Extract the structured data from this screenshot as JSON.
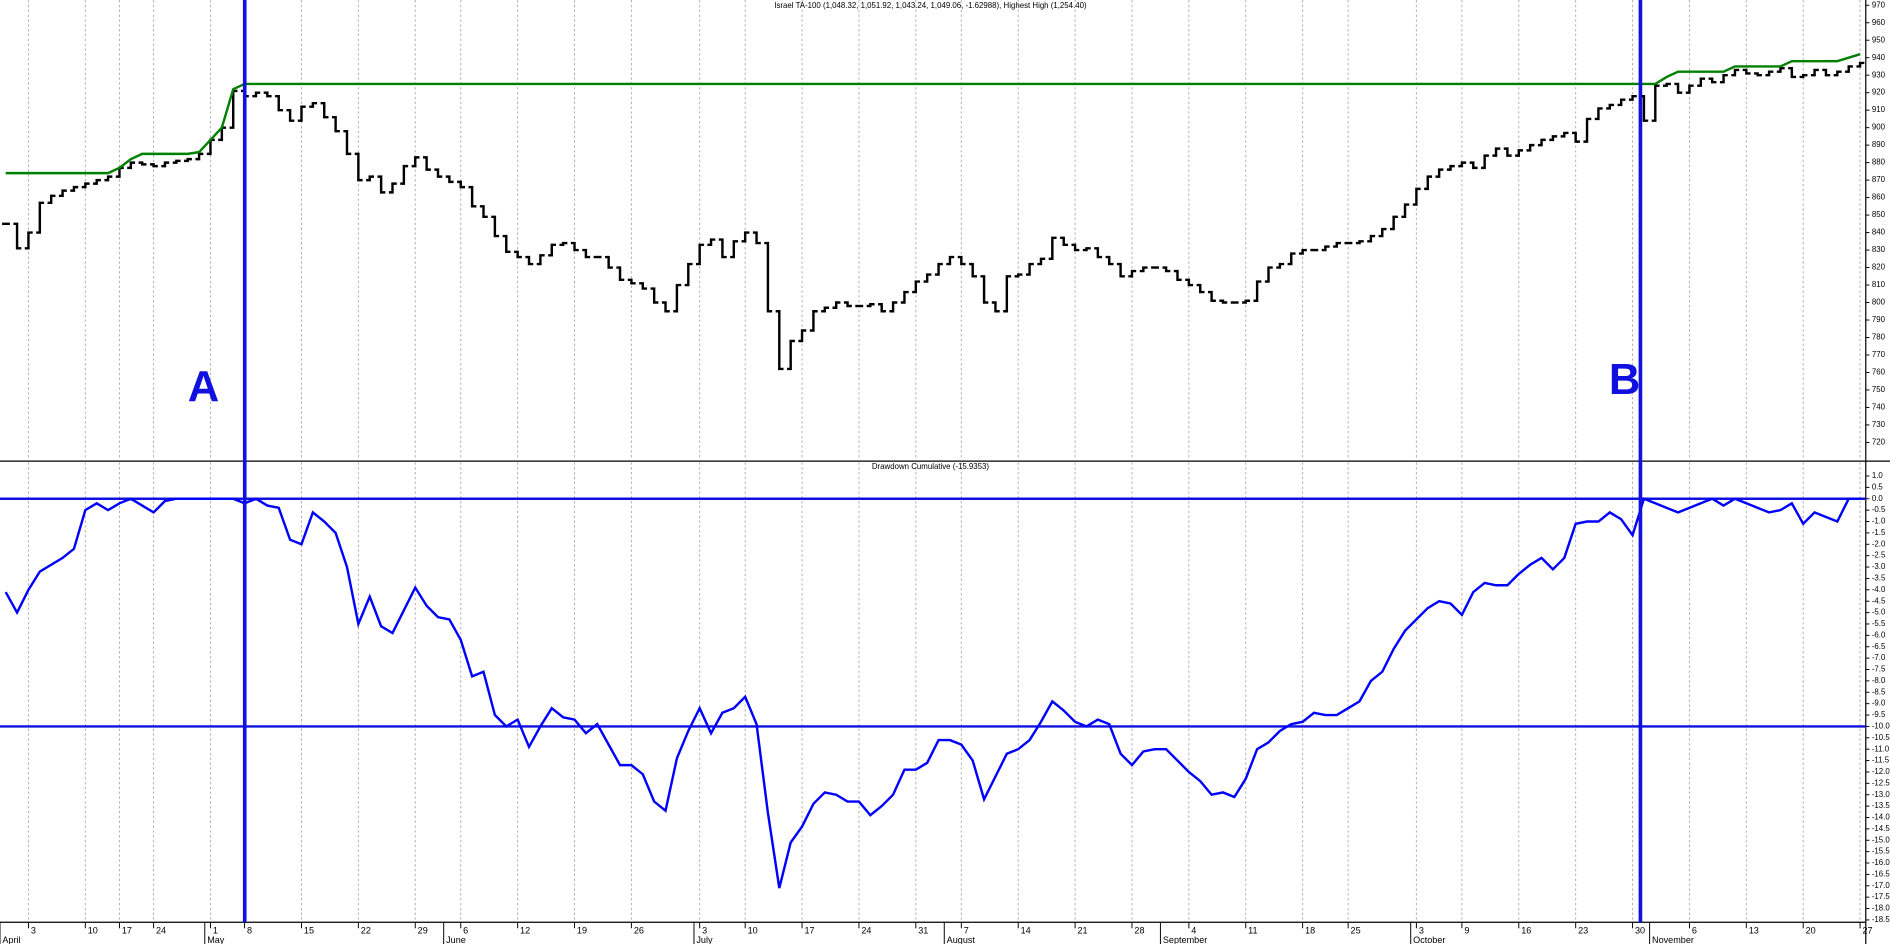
{
  "chart_data": [
    {
      "type": "step",
      "title": "Israel TA-100 (1,048.32, 1,051.92, 1,043.24, 1,049.06, -1.62988), Highest High (1,254.40)",
      "annotations": [
        "A",
        "B"
      ],
      "series": [
        {
          "color": "#000000",
          "style": "bars",
          "values": [
            845,
            831,
            840,
            857,
            861,
            864,
            866,
            868,
            870,
            872,
            877,
            880,
            879,
            878,
            880,
            881,
            882,
            885,
            893,
            900,
            921,
            918,
            920,
            918,
            910,
            904,
            912,
            914,
            906,
            898,
            885,
            870,
            872,
            863,
            868,
            878,
            883,
            876,
            872,
            869,
            866,
            855,
            849,
            838,
            829,
            826,
            822,
            827,
            833,
            834,
            830,
            826,
            826,
            820,
            813,
            811,
            808,
            800,
            795,
            810,
            822,
            833,
            836,
            826,
            835,
            840,
            834,
            795,
            762,
            778,
            784,
            795,
            797,
            800,
            798,
            798,
            799,
            795,
            800,
            806,
            812,
            816,
            822,
            826,
            822,
            815,
            800,
            795,
            815,
            816,
            822,
            825,
            837,
            833,
            830,
            831,
            826,
            822,
            815,
            818,
            820,
            820,
            818,
            813,
            810,
            806,
            801,
            800,
            800,
            801,
            812,
            820,
            822,
            828,
            830,
            830,
            832,
            834,
            834,
            835,
            838,
            842,
            849,
            856,
            865,
            872,
            876,
            878,
            880,
            877,
            884,
            888,
            884,
            887,
            890,
            893,
            895,
            897,
            892,
            905,
            911,
            913,
            916,
            918,
            904,
            924,
            925,
            920,
            924,
            928,
            926,
            930,
            933,
            931,
            930,
            932,
            934,
            929,
            930,
            933,
            930,
            932,
            935,
            937
          ]
        },
        {
          "color": "#008000",
          "style": "line",
          "values": [
            874,
            874,
            874,
            874,
            874,
            874,
            874,
            874,
            874,
            874,
            877,
            882,
            885,
            885,
            885,
            885,
            885,
            886,
            893,
            900,
            922,
            925,
            925,
            925,
            925,
            925,
            925,
            925,
            925,
            925,
            925,
            925,
            925,
            925,
            925,
            925,
            925,
            925,
            925,
            925,
            925,
            925,
            925,
            925,
            925,
            925,
            925,
            925,
            925,
            925,
            925,
            925,
            925,
            925,
            925,
            925,
            925,
            925,
            925,
            925,
            925,
            925,
            925,
            925,
            925,
            925,
            925,
            925,
            925,
            925,
            925,
            925,
            925,
            925,
            925,
            925,
            925,
            925,
            925,
            925,
            925,
            925,
            925,
            925,
            925,
            925,
            925,
            925,
            925,
            925,
            925,
            925,
            925,
            925,
            925,
            925,
            925,
            925,
            925,
            925,
            925,
            925,
            925,
            925,
            925,
            925,
            925,
            925,
            925,
            925,
            925,
            925,
            925,
            925,
            925,
            925,
            925,
            925,
            925,
            925,
            925,
            925,
            925,
            925,
            925,
            925,
            925,
            925,
            925,
            925,
            925,
            925,
            925,
            925,
            925,
            925,
            925,
            925,
            925,
            925,
            925,
            925,
            925,
            925,
            925,
            925,
            929,
            932,
            932,
            932,
            932,
            932,
            935,
            935,
            935,
            935,
            935,
            938,
            938,
            938,
            938,
            938,
            940,
            942
          ]
        }
      ],
      "ylim": [
        710,
        973
      ],
      "yticks": [
        970,
        960,
        950,
        940,
        930,
        920,
        910,
        900,
        890,
        880,
        870,
        860,
        850,
        840,
        830,
        820,
        810,
        800,
        790,
        780,
        770,
        760,
        750,
        740,
        730,
        720
      ],
      "grid": true
    },
    {
      "type": "line",
      "title": "Drawdown Cumulative (-15.9353)",
      "categories": [
        null,
        null,
        "3",
        null,
        null,
        null,
        null,
        "10",
        null,
        null,
        "17",
        null,
        null,
        "24",
        null,
        null,
        null,
        null,
        "1",
        null,
        null,
        "8",
        null,
        null,
        null,
        null,
        "15",
        null,
        null,
        null,
        null,
        "22",
        null,
        null,
        null,
        null,
        "29",
        null,
        null,
        null,
        "6",
        null,
        null,
        null,
        null,
        "12",
        null,
        null,
        null,
        null,
        "19",
        null,
        null,
        null,
        null,
        "26",
        null,
        null,
        null,
        null,
        null,
        "3",
        null,
        null,
        null,
        "10",
        null,
        null,
        null,
        null,
        "17",
        null,
        null,
        null,
        null,
        "24",
        null,
        null,
        null,
        null,
        "31",
        null,
        null,
        null,
        "7",
        null,
        null,
        null,
        null,
        "14",
        null,
        null,
        null,
        null,
        "21",
        null,
        null,
        null,
        null,
        "28",
        null,
        null,
        null,
        null,
        "4",
        null,
        null,
        null,
        null,
        "11",
        null,
        null,
        null,
        null,
        "18",
        null,
        null,
        null,
        "25",
        null,
        null,
        null,
        null,
        null,
        "3",
        null,
        null,
        null,
        "9",
        null,
        null,
        null,
        null,
        "16",
        null,
        null,
        null,
        null,
        "23",
        null,
        null,
        null,
        null,
        "30",
        null,
        null,
        null,
        null,
        "6",
        null,
        null,
        null,
        null,
        "13",
        null,
        null,
        null,
        null,
        "20",
        null,
        null,
        null,
        null,
        "27"
      ],
      "months": [
        "April",
        null,
        null,
        null,
        null,
        null,
        null,
        null,
        null,
        null,
        null,
        null,
        null,
        null,
        null,
        null,
        null,
        null,
        "May",
        null,
        null,
        null,
        null,
        null,
        null,
        null,
        null,
        null,
        null,
        null,
        null,
        null,
        null,
        null,
        null,
        null,
        null,
        null,
        null,
        "June",
        null,
        null,
        null,
        null,
        null,
        null,
        null,
        null,
        null,
        null,
        null,
        null,
        null,
        null,
        null,
        null,
        null,
        null,
        null,
        null,
        null,
        "July",
        null,
        null,
        null,
        null,
        null,
        null,
        null,
        null,
        null,
        null,
        null,
        null,
        null,
        null,
        null,
        null,
        null,
        null,
        null,
        null,
        null,
        "August",
        null,
        null,
        null,
        null,
        null,
        null,
        null,
        null,
        null,
        null,
        null,
        null,
        null,
        null,
        null,
        null,
        null,
        null,
        "September",
        null,
        null,
        null,
        null,
        null,
        null,
        null,
        null,
        null,
        null,
        null,
        null,
        null,
        null,
        null,
        null,
        null,
        null,
        null,
        null,
        null,
        "October",
        null,
        null,
        null,
        null,
        null,
        null,
        null,
        null,
        null,
        null,
        null,
        null,
        null,
        null,
        null,
        null,
        null,
        null,
        null,
        null,
        "November",
        null,
        null,
        null,
        null,
        null,
        null,
        null,
        null,
        null,
        null,
        null,
        null,
        null,
        null,
        null,
        null,
        null,
        null
      ],
      "series": [
        {
          "color": "#0000ff",
          "style": "line",
          "values": [
            -4.1,
            -5.0,
            -4.0,
            -3.2,
            -2.9,
            -2.6,
            -2.2,
            -0.5,
            -0.2,
            -0.5,
            -0.2,
            0,
            -0.3,
            -0.6,
            -0.1,
            0,
            0,
            0,
            0,
            0,
            0,
            -0.2,
            0,
            -0.3,
            -0.4,
            -1.8,
            -2.0,
            -0.6,
            -1.0,
            -1.5,
            -3.0,
            -5.5,
            -4.3,
            -5.6,
            -5.9,
            -4.9,
            -3.9,
            -4.7,
            -5.2,
            -5.3,
            -6.2,
            -7.8,
            -7.6,
            -9.5,
            -10.0,
            -9.7,
            -10.9,
            -10.0,
            -9.2,
            -9.6,
            -9.7,
            -10.3,
            -9.9,
            -10.8,
            -11.7,
            -11.7,
            -12.1,
            -13.3,
            -13.7,
            -11.4,
            -10.2,
            -9.2,
            -10.3,
            -9.4,
            -9.2,
            -8.7,
            -9.9,
            -13.8,
            -17.1,
            -15.1,
            -14.4,
            -13.4,
            -12.9,
            -13.0,
            -13.3,
            -13.3,
            -13.9,
            -13.5,
            -13.0,
            -11.9,
            -11.9,
            -11.6,
            -10.6,
            -10.6,
            -10.8,
            -11.5,
            -13.2,
            -12.2,
            -11.2,
            -11.0,
            -10.6,
            -9.8,
            -8.9,
            -9.3,
            -9.8,
            -10.0,
            -9.7,
            -9.9,
            -11.2,
            -11.7,
            -11.1,
            -11.0,
            -11.0,
            -11.5,
            -12.0,
            -12.4,
            -13.0,
            -12.9,
            -13.1,
            -12.3,
            -11.0,
            -10.7,
            -10.2,
            -9.9,
            -9.8,
            -9.4,
            -9.5,
            -9.5,
            -9.2,
            -8.9,
            -8.0,
            -7.6,
            -6.6,
            -5.8,
            -5.3,
            -4.8,
            -4.5,
            -4.6,
            -5.1,
            -4.1,
            -3.7,
            -3.8,
            -3.8,
            -3.3,
            -2.9,
            -2.6,
            -3.1,
            -2.6,
            -1.1,
            -1.0,
            -1.0,
            -0.6,
            -0.9,
            -1.6,
            0,
            -0.2,
            -0.4,
            -0.6,
            -0.4,
            -0.2,
            0,
            -0.3,
            0,
            -0.2,
            -0.4,
            -0.6,
            -0.5,
            -0.2,
            -1.1,
            -0.6,
            -0.8,
            -1.0,
            0,
            0
          ]
        }
      ],
      "hlines": [
        0,
        -10
      ],
      "ylim": [
        -18.6,
        1.6
      ],
      "yticks": [
        {
          "value": 1,
          "label": "1.0"
        },
        0.5,
        {
          "value": 0,
          "label": "0.0"
        },
        -0.5,
        {
          "value": -1,
          "label": "-1.0"
        },
        -1.5,
        {
          "value": -2,
          "label": "-2.0"
        },
        -2.5,
        {
          "value": -3,
          "label": "-3.0"
        },
        -3.5,
        {
          "value": -4,
          "label": "-4.0"
        },
        -4.5,
        {
          "value": -5,
          "label": "-5.0"
        },
        -5.5,
        {
          "value": -6,
          "label": "-6.0"
        },
        -6.5,
        {
          "value": -7,
          "label": "-7.0"
        },
        -7.5,
        {
          "value": -8,
          "label": "-8.0"
        },
        -8.5,
        {
          "value": -9,
          "label": "-9.0"
        },
        -9.5,
        {
          "value": -10,
          "label": "-10.0"
        },
        -10.5,
        {
          "value": -11,
          "label": "-11.0"
        },
        -11.5,
        {
          "value": -12,
          "label": "-12.0"
        },
        -12.5,
        {
          "value": -13,
          "label": "-13.0"
        },
        -13.5,
        {
          "value": -14,
          "label": "-14.0"
        },
        -14.5,
        {
          "value": -15,
          "label": "-15.0"
        },
        -15.5,
        {
          "value": -16,
          "label": "-16.0"
        },
        -16.5,
        {
          "value": -17,
          "label": "-17.0"
        },
        -17.5,
        {
          "value": -18,
          "label": "-18.0"
        },
        -18.5
      ],
      "grid": true
    }
  ]
}
